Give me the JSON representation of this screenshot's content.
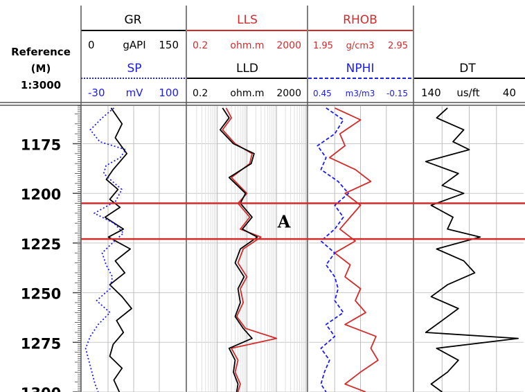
{
  "reference": {
    "title": "Reference",
    "unit": "(M)",
    "scale": "1:3000"
  },
  "tracks": [
    {
      "curves": [
        {
          "name": "GR",
          "min": "0",
          "max": "150",
          "unit": "gAPI",
          "color": "#000000",
          "dash": "none"
        },
        {
          "name": "SP",
          "min": "-30",
          "max": "100",
          "unit": "mV",
          "color": "#1a1aff",
          "dash": "2,3"
        }
      ]
    },
    {
      "curves": [
        {
          "name": "LLS",
          "min": "0.2",
          "max": "2000",
          "unit": "ohm.m",
          "color": "#d42a2a",
          "dash": "none"
        },
        {
          "name": "LLD",
          "min": "0.2",
          "max": "2000",
          "unit": "ohm.m",
          "color": "#000000",
          "dash": "none"
        }
      ]
    },
    {
      "curves": [
        {
          "name": "RHOB",
          "min": "1.95",
          "max": "2.95",
          "unit": "g/cm3",
          "color": "#d42a2a",
          "dash": "none"
        },
        {
          "name": "NPHI",
          "min": "0.45",
          "max": "-0.15",
          "unit": "m3/m3",
          "color": "#1a1aff",
          "dash": "5,3"
        }
      ]
    },
    {
      "curves": [
        {
          "name": "DT",
          "min": "140",
          "max": "40",
          "unit": "us/ft",
          "color": "#000000",
          "dash": "none"
        }
      ]
    }
  ],
  "chart_data": {
    "type": "line",
    "depth_range": [
      1156,
      1300
    ],
    "depth_ticks": [
      1175,
      1200,
      1225,
      1250,
      1275,
      1300
    ],
    "depth_tick_labels": [
      "1175",
      "1200",
      "1225",
      "1250",
      "1275",
      "1300"
    ],
    "zone": {
      "label": "A",
      "top": 1205,
      "bottom": 1223,
      "color": "#d42a2a"
    },
    "series": [
      {
        "name": "GR",
        "track": 0,
        "scale": "linear",
        "range": [
          0,
          150
        ],
        "depth": [
          1157,
          1165,
          1172,
          1180,
          1188,
          1193,
          1198,
          1203,
          1207,
          1212,
          1218,
          1222,
          1228,
          1234,
          1240,
          1246,
          1252,
          1258,
          1264,
          1270,
          1276,
          1282,
          1288,
          1294,
          1300
        ],
        "values": [
          42,
          58,
          48,
          65,
          45,
          35,
          52,
          40,
          55,
          33,
          60,
          38,
          70,
          48,
          62,
          40,
          58,
          72,
          50,
          60,
          45,
          40,
          58,
          46,
          54
        ]
      },
      {
        "name": "SP",
        "track": 0,
        "scale": "linear",
        "range": [
          -30,
          100
        ],
        "depth": [
          1157,
          1162,
          1168,
          1174,
          1178,
          1182,
          1186,
          1190,
          1194,
          1198,
          1204,
          1210,
          1215,
          1220,
          1225,
          1230,
          1236,
          1242,
          1248,
          1254,
          1260,
          1266,
          1272,
          1278,
          1284,
          1290,
          1296,
          1300
        ],
        "values": [
          10,
          -5,
          -20,
          -8,
          25,
          18,
          0,
          -3,
          8,
          20,
          12,
          -15,
          10,
          22,
          8,
          -5,
          0,
          8,
          5,
          -12,
          5,
          -10,
          -20,
          -26,
          -22,
          -18,
          -14,
          -10
        ]
      },
      {
        "name": "LLS",
        "track": 1,
        "scale": "log",
        "range": [
          0.2,
          2000
        ],
        "depth": [
          1157,
          1162,
          1168,
          1175,
          1180,
          1185,
          1192,
          1200,
          1205,
          1212,
          1218,
          1222,
          1228,
          1235,
          1242,
          1248,
          1255,
          1262,
          1268,
          1273,
          1278,
          1284,
          1290,
          1296,
          1300
        ],
        "values": [
          4,
          6,
          3,
          8,
          30,
          25,
          6,
          20,
          10,
          25,
          12,
          60,
          15,
          10,
          20,
          12,
          15,
          9,
          18,
          200,
          6,
          10,
          8,
          12,
          10
        ]
      },
      {
        "name": "LLD",
        "track": 1,
        "scale": "log",
        "range": [
          0.2,
          2000
        ],
        "depth": [
          1157,
          1162,
          1168,
          1175,
          1180,
          1185,
          1192,
          1200,
          1205,
          1212,
          1218,
          1222,
          1228,
          1235,
          1242,
          1248,
          1255,
          1262,
          1268,
          1273,
          1278,
          1284,
          1290,
          1296,
          1300
        ],
        "values": [
          3,
          5,
          2.5,
          7,
          35,
          28,
          5,
          18,
          12,
          30,
          14,
          45,
          12,
          8,
          16,
          10,
          12,
          8,
          15,
          30,
          5,
          8,
          7,
          10,
          9
        ]
      },
      {
        "name": "RHOB",
        "track": 2,
        "scale": "linear",
        "range": [
          1.95,
          2.95
        ],
        "depth": [
          1157,
          1163,
          1170,
          1176,
          1182,
          1188,
          1194,
          1200,
          1206,
          1212,
          1218,
          1224,
          1230,
          1236,
          1242,
          1248,
          1254,
          1260,
          1266,
          1272,
          1278,
          1284,
          1290,
          1296,
          1300
        ],
        "values": [
          2.2,
          2.45,
          2.25,
          2.3,
          2.15,
          2.4,
          2.55,
          2.3,
          2.45,
          2.35,
          2.25,
          2.4,
          2.2,
          2.35,
          2.3,
          2.45,
          2.4,
          2.5,
          2.3,
          2.6,
          2.55,
          2.62,
          2.45,
          2.3,
          2.5
        ]
      },
      {
        "name": "NPHI",
        "track": 2,
        "scale": "linear",
        "range": [
          0.45,
          -0.15
        ],
        "depth": [
          1157,
          1163,
          1170,
          1176,
          1182,
          1188,
          1194,
          1200,
          1206,
          1212,
          1218,
          1224,
          1230,
          1236,
          1242,
          1248,
          1254,
          1260,
          1266,
          1272,
          1278,
          1284,
          1290,
          1296,
          1300
        ],
        "values": [
          0.35,
          0.25,
          0.3,
          0.4,
          0.35,
          0.38,
          0.28,
          0.22,
          0.3,
          0.25,
          0.3,
          0.38,
          0.3,
          0.35,
          0.3,
          0.28,
          0.3,
          0.25,
          0.35,
          0.3,
          0.38,
          0.33,
          0.36,
          0.38,
          0.35
        ]
      },
      {
        "name": "DT",
        "track": 3,
        "scale": "linear",
        "range": [
          140,
          40
        ],
        "depth": [
          1157,
          1162,
          1168,
          1174,
          1178,
          1184,
          1190,
          1196,
          1200,
          1206,
          1212,
          1218,
          1222,
          1228,
          1234,
          1240,
          1246,
          1252,
          1258,
          1264,
          1270,
          1273,
          1278,
          1284,
          1290,
          1296,
          1300
        ],
        "values": [
          110,
          120,
          95,
          105,
          90,
          130,
          100,
          115,
          95,
          125,
          105,
          110,
          80,
          120,
          95,
          85,
          110,
          125,
          100,
          115,
          130,
          45,
          120,
          100,
          110,
          125,
          115
        ]
      }
    ]
  }
}
